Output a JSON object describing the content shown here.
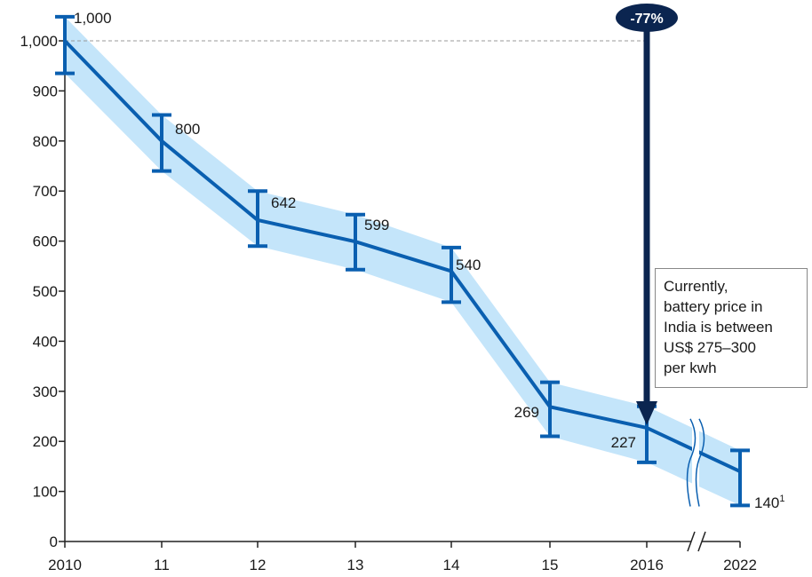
{
  "chart_data": {
    "type": "line",
    "categories": [
      "2010",
      "11",
      "12",
      "13",
      "14",
      "15",
      "2016",
      "2022"
    ],
    "values": [
      1000,
      800,
      642,
      599,
      540,
      269,
      227,
      140
    ],
    "data_labels": [
      "1,000",
      "800",
      "642",
      "599",
      "540",
      "269",
      "227",
      "140"
    ],
    "error_low": [
      935,
      740,
      590,
      543,
      478,
      210,
      158,
      72
    ],
    "error_high": [
      1048,
      852,
      700,
      653,
      587,
      318,
      270,
      182
    ],
    "footnote_marker": "1",
    "yticks": [
      0,
      100,
      200,
      300,
      400,
      500,
      600,
      700,
      800,
      900,
      1000
    ],
    "ytick_labels": [
      "0",
      "100",
      "200",
      "300",
      "400",
      "500",
      "600",
      "700",
      "800",
      "900",
      "1,000"
    ],
    "ylim": [
      0,
      1000
    ],
    "title": "",
    "xlabel": "",
    "ylabel": "",
    "axis_break": "between 2016 and 2022",
    "reference_value": 1000,
    "change_badge": "-77%",
    "annotation_lines": [
      "Currently,",
      "battery price in",
      "India is between",
      "US$ 275–300",
      "per kwh"
    ],
    "colors": {
      "line": "#0a5fb0",
      "band": "#c4e5fa",
      "arrow": "#0b2550",
      "badge": "#0b2550",
      "axis": "#222222",
      "reference_line": "#999999"
    }
  }
}
